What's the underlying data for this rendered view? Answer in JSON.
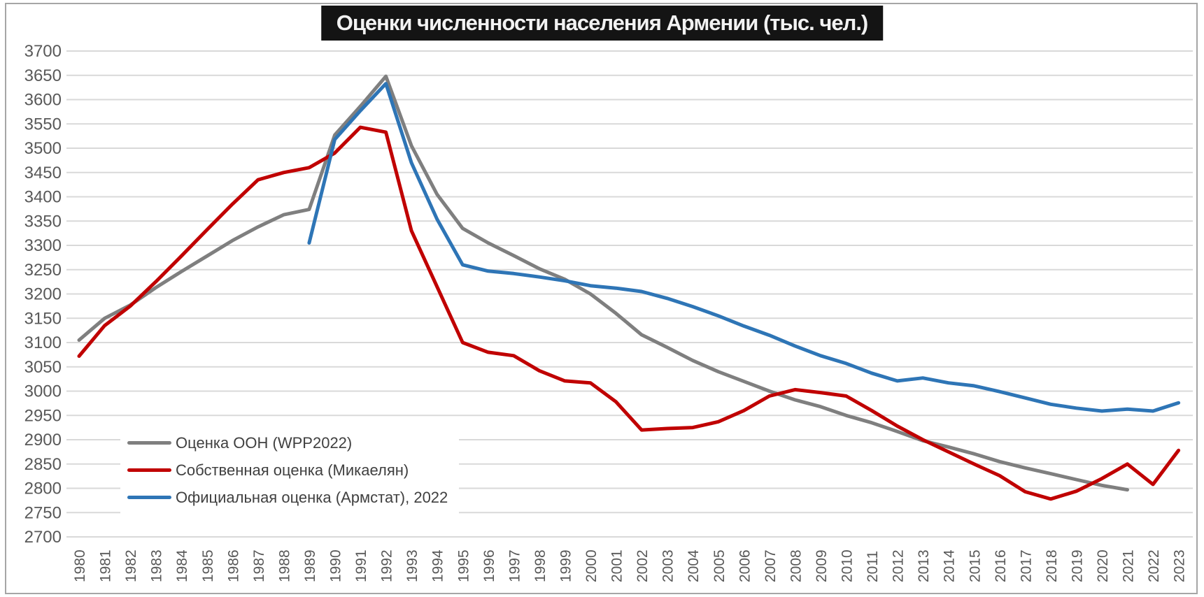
{
  "page": {
    "title": "Оценки численности населения Армении (тыс. чел.)"
  },
  "chart_data": {
    "type": "line",
    "title": "Оценки численности населения Армении (тыс. чел.)",
    "xlabel": "",
    "ylabel": "",
    "ylim": [
      2700,
      3700
    ],
    "ytick_step": 50,
    "y_ticks": [
      3700,
      3650,
      3600,
      3550,
      3500,
      3450,
      3400,
      3350,
      3300,
      3250,
      3200,
      3150,
      3100,
      3050,
      3000,
      2950,
      2900,
      2850,
      2800,
      2750,
      2700
    ],
    "grid": "horizontal-only",
    "grid_color": "#d9d9d9",
    "tick_text_color": "#595959",
    "legend_position": "inside-bottom-left",
    "x": [
      1980,
      1981,
      1982,
      1983,
      1984,
      1985,
      1986,
      1987,
      1988,
      1989,
      1990,
      1991,
      1992,
      1993,
      1994,
      1995,
      1996,
      1997,
      1998,
      1999,
      2000,
      2001,
      2002,
      2003,
      2004,
      2005,
      2006,
      2007,
      2008,
      2009,
      2010,
      2011,
      2012,
      2013,
      2014,
      2015,
      2016,
      2017,
      2018,
      2019,
      2020,
      2021,
      2022,
      2023
    ],
    "series": [
      {
        "id": "un-wpp2022",
        "name": "Оценка ООН (WPP2022)",
        "color": "#7f7f7f",
        "values": [
          3105,
          3150,
          3177,
          3213,
          3246,
          3278,
          3310,
          3338,
          3363,
          3374,
          3527,
          3586,
          3648,
          3505,
          3405,
          3335,
          3305,
          3279,
          3252,
          3230,
          3200,
          3160,
          3116,
          3090,
          3063,
          3040,
          3020,
          3000,
          2982,
          2968,
          2950,
          2935,
          2917,
          2898,
          2885,
          2871,
          2855,
          2842,
          2830,
          2818,
          2806,
          2797,
          null,
          null
        ]
      },
      {
        "id": "mikaelyan",
        "name": "Собственная оценка (Микаелян)",
        "color": "#c00000",
        "values": [
          3072,
          3135,
          3175,
          3225,
          3278,
          3332,
          3385,
          3435,
          3450,
          3460,
          3490,
          3543,
          3533,
          3330,
          3215,
          3100,
          3080,
          3073,
          3042,
          3021,
          3017,
          2978,
          2920,
          2923,
          2925,
          2937,
          2960,
          2990,
          3003,
          2997,
          2990,
          2960,
          2928,
          2900,
          2875,
          2850,
          2826,
          2793,
          2778,
          2794,
          2820,
          2850,
          2808,
          2878
        ]
      },
      {
        "id": "armstat-2022",
        "name": "Официальная оценка (Армстат), 2022",
        "color": "#2e75b6",
        "values": [
          null,
          null,
          null,
          null,
          null,
          null,
          null,
          null,
          null,
          3305,
          3518,
          3577,
          3633,
          3470,
          3354,
          3260,
          3247,
          3242,
          3235,
          3227,
          3217,
          3212,
          3205,
          3191,
          3174,
          3155,
          3134,
          3115,
          3093,
          3073,
          3057,
          3037,
          3021,
          3027,
          3017,
          3011,
          2999,
          2986,
          2973,
          2965,
          2959,
          2963,
          2959,
          2976
        ]
      }
    ]
  }
}
